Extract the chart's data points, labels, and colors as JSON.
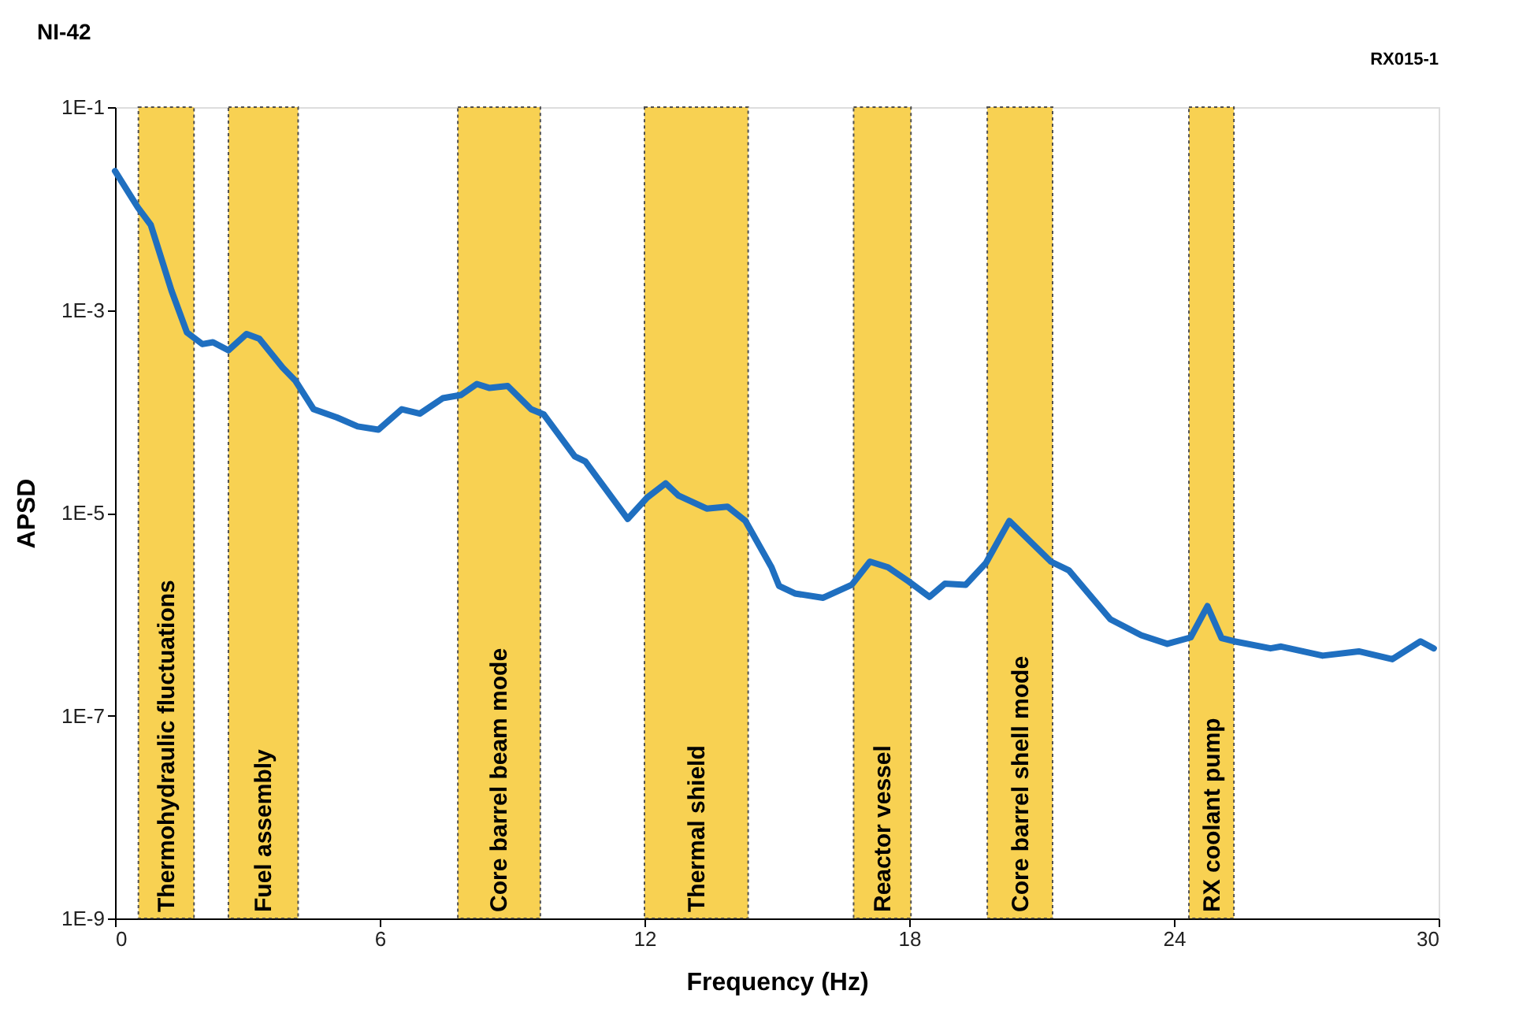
{
  "chart_data": {
    "type": "line",
    "title": "NI-42",
    "xlabel": "Frequency (Hz)",
    "ylabel": "APSD",
    "annotations": [
      "RX015-1"
    ],
    "log": true,
    "grid": false,
    "line_style": "solid",
    "marker": "none",
    "xlim": [
      0,
      30
    ],
    "xticks": [
      0,
      6,
      12,
      18,
      24,
      30
    ],
    "ylim": [
      1e-09,
      0.1
    ],
    "yticks": [
      {
        "value": 0.1,
        "label": "1E-1"
      },
      {
        "value": 0.001,
        "label": "1E-3"
      },
      {
        "value": 1e-05,
        "label": "1E-5"
      },
      {
        "value": 1e-07,
        "label": "1E-7"
      },
      {
        "value": 1e-09,
        "label": "1E-9"
      }
    ],
    "series": [
      {
        "color": "#1f6fc0",
        "x": [
          0,
          0.52,
          0.81,
          1.28,
          1.63,
          1.98,
          2.22,
          2.57,
          2.98,
          3.27,
          3.8,
          4.09,
          4.5,
          5.03,
          5.5,
          5.97,
          6.5,
          6.91,
          7.43,
          7.84,
          8.2,
          8.49,
          8.9,
          9.43,
          9.72,
          10.42,
          10.66,
          11.62,
          12.06,
          12.48,
          12.77,
          13.41,
          13.88,
          14.29,
          14.88,
          15.05,
          15.41,
          16.05,
          16.7,
          17.11,
          17.52,
          17.99,
          18.46,
          18.81,
          19.28,
          19.74,
          20.27,
          21.21,
          21.62,
          22.56,
          23.26,
          23.85,
          24.38,
          24.76,
          25.08,
          25.37,
          26.19,
          26.43,
          27.37,
          28.19,
          28.95,
          29.59,
          29.89
        ],
        "values": [
          0.0234,
          0.0102,
          0.0069,
          0.00155,
          0.0006,
          0.00046,
          0.00048,
          0.0004,
          0.00058,
          0.00052,
          0.00027,
          0.0002,
          0.000105,
          8.7e-05,
          7.1e-05,
          6.6e-05,
          0.000105,
          9.5e-05,
          0.000135,
          0.000145,
          0.000186,
          0.00017,
          0.000178,
          0.000105,
          9.3e-05,
          3.6e-05,
          3.2e-05,
          8.7e-06,
          1.41e-05,
          1.95e-05,
          1.48e-05,
          1.1e-05,
          1.15e-05,
          8.3e-06,
          2.9e-06,
          1.9e-06,
          1.6e-06,
          1.45e-06,
          1.95e-06,
          3.3e-06,
          2.9e-06,
          2.1e-06,
          1.48e-06,
          2e-06,
          1.95e-06,
          3.2e-06,
          8.3e-06,
          3.3e-06,
          2.7e-06,
          8.9e-07,
          6.2e-07,
          5.1e-07,
          5.9e-07,
          1.2e-06,
          5.8e-07,
          5.4e-07,
          4.6e-07,
          4.8e-07,
          3.9e-07,
          4.3e-07,
          3.6e-07,
          5.4e-07,
          4.6e-07
        ]
      }
    ],
    "bands": [
      {
        "axis": "x",
        "from": 0.53,
        "to": 1.79,
        "label": "Thermohydraulic  fluctuations",
        "color": "#f7c934"
      },
      {
        "axis": "x",
        "from": 2.57,
        "to": 4.15,
        "label": "Fuel assembly",
        "color": "#f7c934"
      },
      {
        "axis": "x",
        "from": 7.77,
        "to": 9.64,
        "label": "Core barrel beam mode",
        "color": "#f7c934"
      },
      {
        "axis": "x",
        "from": 12.0,
        "to": 14.35,
        "label": "Thermal shield",
        "color": "#f7c934"
      },
      {
        "axis": "x",
        "from": 16.74,
        "to": 18.04,
        "label": "Reactor vessel",
        "color": "#f7c934"
      },
      {
        "axis": "x",
        "from": 19.77,
        "to": 21.25,
        "label": "Core barrel shell mode",
        "color": "#f7c934"
      },
      {
        "axis": "x",
        "from": 24.34,
        "to": 25.36,
        "label": "RX coolant pump",
        "color": "#f7c934"
      }
    ]
  }
}
